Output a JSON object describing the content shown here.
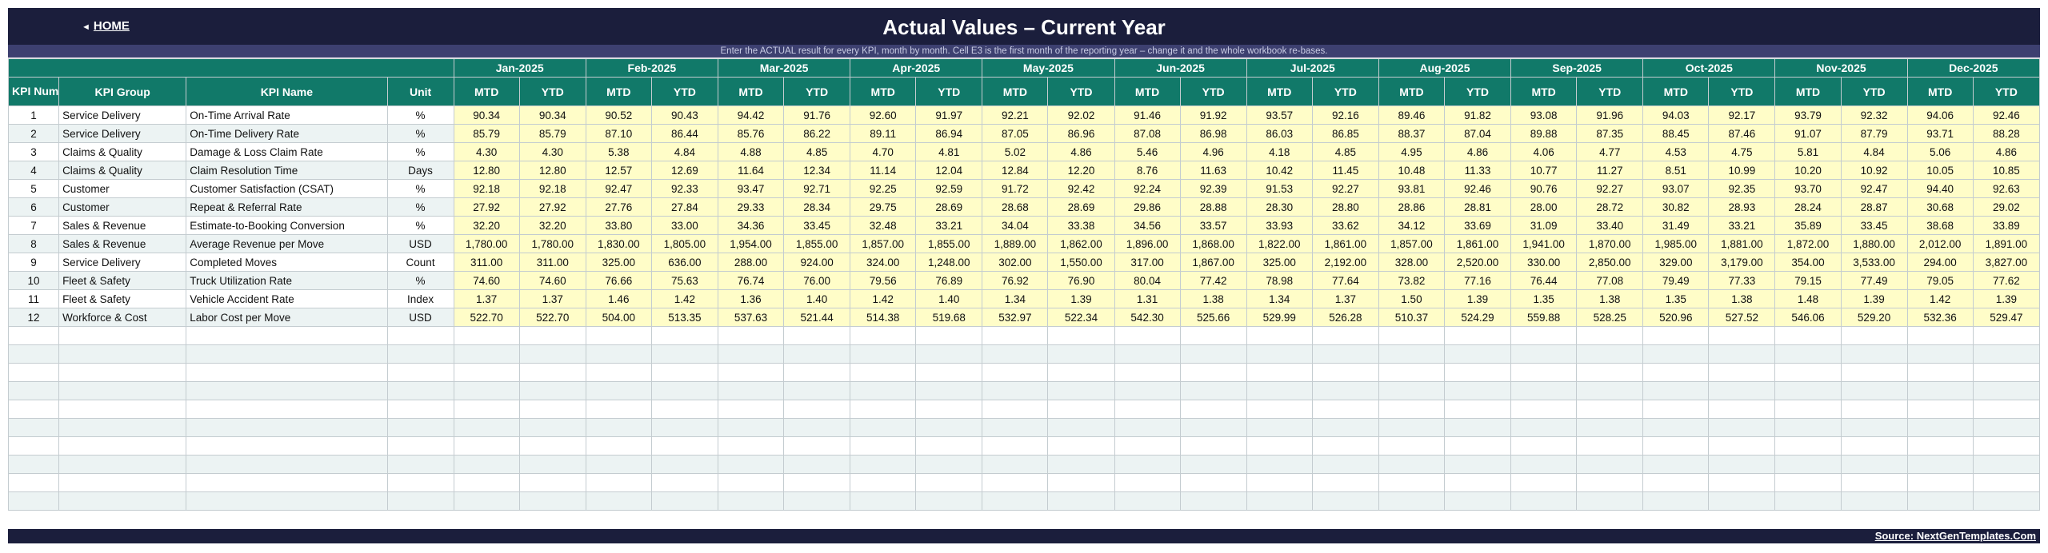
{
  "header": {
    "home_arrow": "◄",
    "home_label": "HOME",
    "title": "Actual Values  –  Current Year",
    "instruction": "Enter the ACTUAL result for every KPI, month by month. Cell E3 is the first month of the reporting year – change it and the whole workbook re-bases."
  },
  "columns": {
    "kpi_number": "KPI Number",
    "kpi_group": "KPI Group",
    "kpi_name": "KPI Name",
    "unit": "Unit",
    "mtd": "MTD",
    "ytd": "YTD"
  },
  "months": [
    "Jan-2025",
    "Feb-2025",
    "Mar-2025",
    "Apr-2025",
    "May-2025",
    "Jun-2025",
    "Jul-2025",
    "Aug-2025",
    "Sep-2025",
    "Oct-2025",
    "Nov-2025",
    "Dec-2025"
  ],
  "rows": [
    {
      "num": "1",
      "group": "Service Delivery",
      "name": "On-Time Arrival Rate",
      "unit": "%",
      "values": [
        "90.34",
        "90.34",
        "90.52",
        "90.43",
        "94.42",
        "91.76",
        "92.60",
        "91.97",
        "92.21",
        "92.02",
        "91.46",
        "91.92",
        "93.57",
        "92.16",
        "89.46",
        "91.82",
        "93.08",
        "91.96",
        "94.03",
        "92.17",
        "93.79",
        "92.32",
        "94.06",
        "92.46"
      ]
    },
    {
      "num": "2",
      "group": "Service Delivery",
      "name": "On-Time Delivery Rate",
      "unit": "%",
      "values": [
        "85.79",
        "85.79",
        "87.10",
        "86.44",
        "85.76",
        "86.22",
        "89.11",
        "86.94",
        "87.05",
        "86.96",
        "87.08",
        "86.98",
        "86.03",
        "86.85",
        "88.37",
        "87.04",
        "89.88",
        "87.35",
        "88.45",
        "87.46",
        "91.07",
        "87.79",
        "93.71",
        "88.28"
      ]
    },
    {
      "num": "3",
      "group": "Claims & Quality",
      "name": "Damage & Loss Claim Rate",
      "unit": "%",
      "values": [
        "4.30",
        "4.30",
        "5.38",
        "4.84",
        "4.88",
        "4.85",
        "4.70",
        "4.81",
        "5.02",
        "4.86",
        "5.46",
        "4.96",
        "4.18",
        "4.85",
        "4.95",
        "4.86",
        "4.06",
        "4.77",
        "4.53",
        "4.75",
        "5.81",
        "4.84",
        "5.06",
        "4.86"
      ]
    },
    {
      "num": "4",
      "group": "Claims & Quality",
      "name": "Claim Resolution Time",
      "unit": "Days",
      "values": [
        "12.80",
        "12.80",
        "12.57",
        "12.69",
        "11.64",
        "12.34",
        "11.14",
        "12.04",
        "12.84",
        "12.20",
        "8.76",
        "11.63",
        "10.42",
        "11.45",
        "10.48",
        "11.33",
        "10.77",
        "11.27",
        "8.51",
        "10.99",
        "10.20",
        "10.92",
        "10.05",
        "10.85"
      ]
    },
    {
      "num": "5",
      "group": "Customer",
      "name": "Customer Satisfaction (CSAT)",
      "unit": "%",
      "values": [
        "92.18",
        "92.18",
        "92.47",
        "92.33",
        "93.47",
        "92.71",
        "92.25",
        "92.59",
        "91.72",
        "92.42",
        "92.24",
        "92.39",
        "91.53",
        "92.27",
        "93.81",
        "92.46",
        "90.76",
        "92.27",
        "93.07",
        "92.35",
        "93.70",
        "92.47",
        "94.40",
        "92.63"
      ]
    },
    {
      "num": "6",
      "group": "Customer",
      "name": "Repeat & Referral Rate",
      "unit": "%",
      "values": [
        "27.92",
        "27.92",
        "27.76",
        "27.84",
        "29.33",
        "28.34",
        "29.75",
        "28.69",
        "28.68",
        "28.69",
        "29.86",
        "28.88",
        "28.30",
        "28.80",
        "28.86",
        "28.81",
        "28.00",
        "28.72",
        "30.82",
        "28.93",
        "28.24",
        "28.87",
        "30.68",
        "29.02"
      ]
    },
    {
      "num": "7",
      "group": "Sales & Revenue",
      "name": "Estimate-to-Booking Conversion",
      "unit": "%",
      "values": [
        "32.20",
        "32.20",
        "33.80",
        "33.00",
        "34.36",
        "33.45",
        "32.48",
        "33.21",
        "34.04",
        "33.38",
        "34.56",
        "33.57",
        "33.93",
        "33.62",
        "34.12",
        "33.69",
        "31.09",
        "33.40",
        "31.49",
        "33.21",
        "35.89",
        "33.45",
        "38.68",
        "33.89"
      ]
    },
    {
      "num": "8",
      "group": "Sales & Revenue",
      "name": "Average Revenue per Move",
      "unit": "USD",
      "values": [
        "1,780.00",
        "1,780.00",
        "1,830.00",
        "1,805.00",
        "1,954.00",
        "1,855.00",
        "1,857.00",
        "1,855.00",
        "1,889.00",
        "1,862.00",
        "1,896.00",
        "1,868.00",
        "1,822.00",
        "1,861.00",
        "1,857.00",
        "1,861.00",
        "1,941.00",
        "1,870.00",
        "1,985.00",
        "1,881.00",
        "1,872.00",
        "1,880.00",
        "2,012.00",
        "1,891.00"
      ]
    },
    {
      "num": "9",
      "group": "Service Delivery",
      "name": "Completed Moves",
      "unit": "Count",
      "values": [
        "311.00",
        "311.00",
        "325.00",
        "636.00",
        "288.00",
        "924.00",
        "324.00",
        "1,248.00",
        "302.00",
        "1,550.00",
        "317.00",
        "1,867.00",
        "325.00",
        "2,192.00",
        "328.00",
        "2,520.00",
        "330.00",
        "2,850.00",
        "329.00",
        "3,179.00",
        "354.00",
        "3,533.00",
        "294.00",
        "3,827.00"
      ]
    },
    {
      "num": "10",
      "group": "Fleet & Safety",
      "name": "Truck Utilization Rate",
      "unit": "%",
      "values": [
        "74.60",
        "74.60",
        "76.66",
        "75.63",
        "76.74",
        "76.00",
        "79.56",
        "76.89",
        "76.92",
        "76.90",
        "80.04",
        "77.42",
        "78.98",
        "77.64",
        "73.82",
        "77.16",
        "76.44",
        "77.08",
        "79.49",
        "77.33",
        "79.15",
        "77.49",
        "79.05",
        "77.62"
      ]
    },
    {
      "num": "11",
      "group": "Fleet & Safety",
      "name": "Vehicle Accident Rate",
      "unit": "Index",
      "values": [
        "1.37",
        "1.37",
        "1.46",
        "1.42",
        "1.36",
        "1.40",
        "1.42",
        "1.40",
        "1.34",
        "1.39",
        "1.31",
        "1.38",
        "1.34",
        "1.37",
        "1.50",
        "1.39",
        "1.35",
        "1.38",
        "1.35",
        "1.38",
        "1.48",
        "1.39",
        "1.42",
        "1.39"
      ]
    },
    {
      "num": "12",
      "group": "Workforce & Cost",
      "name": "Labor Cost per Move",
      "unit": "USD",
      "values": [
        "522.70",
        "522.70",
        "504.00",
        "513.35",
        "537.63",
        "521.44",
        "514.38",
        "519.68",
        "532.97",
        "522.34",
        "542.30",
        "525.66",
        "529.99",
        "526.28",
        "510.37",
        "524.29",
        "559.88",
        "528.25",
        "520.96",
        "527.52",
        "546.06",
        "529.20",
        "532.36",
        "529.47"
      ]
    }
  ],
  "empty_row_count": 10,
  "footer": {
    "source": "Source: NextGenTemplates.Com"
  },
  "colors": {
    "banner": "#1b1e3c",
    "header_teal": "#117969",
    "input_yellow": "#fffdc8",
    "stripe": "#ecf3f3"
  }
}
